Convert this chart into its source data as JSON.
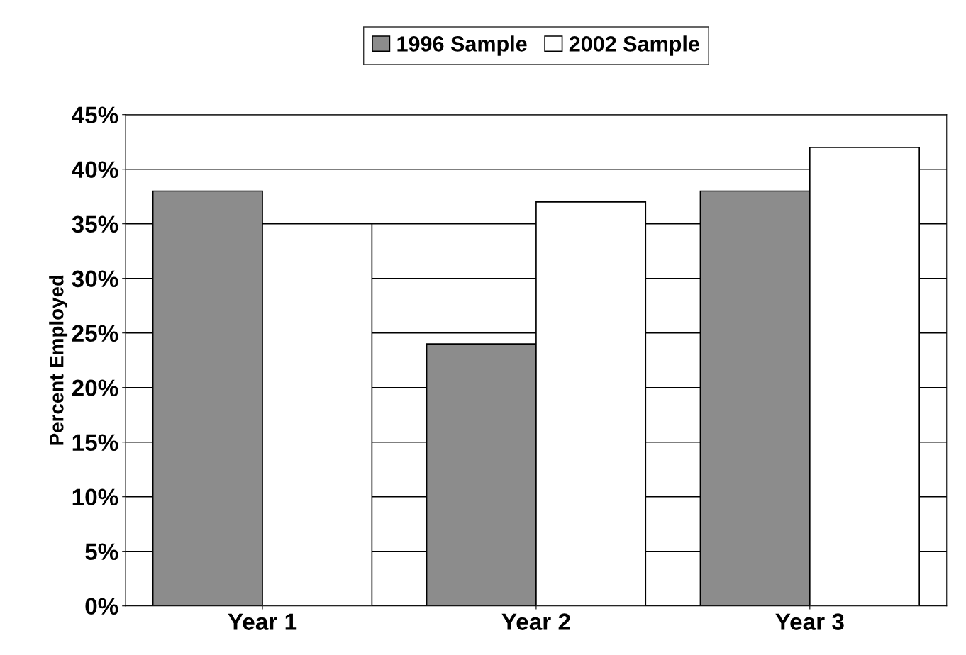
{
  "chart_data": {
    "type": "bar",
    "ylabel": "Percent Employed",
    "categories": [
      "Year 1",
      "Year 2",
      "Year 3"
    ],
    "series": [
      {
        "name": "1996 Sample",
        "color": "#8c8c8c",
        "values": [
          38,
          24,
          38
        ]
      },
      {
        "name": "2002 Sample",
        "color": "#ffffff",
        "values": [
          35,
          37,
          42
        ]
      }
    ],
    "ylim": [
      0,
      45
    ],
    "yticks": [
      {
        "value": 0,
        "label": "0%"
      },
      {
        "value": 5,
        "label": "5%"
      },
      {
        "value": 10,
        "label": "10%"
      },
      {
        "value": 15,
        "label": "15%"
      },
      {
        "value": 20,
        "label": "20%"
      },
      {
        "value": 25,
        "label": "25%"
      },
      {
        "value": 30,
        "label": "30%"
      },
      {
        "value": 35,
        "label": "35%"
      },
      {
        "value": 40,
        "label": "40%"
      },
      {
        "value": 45,
        "label": "45%"
      }
    ],
    "grid": "y",
    "legend": "top"
  }
}
